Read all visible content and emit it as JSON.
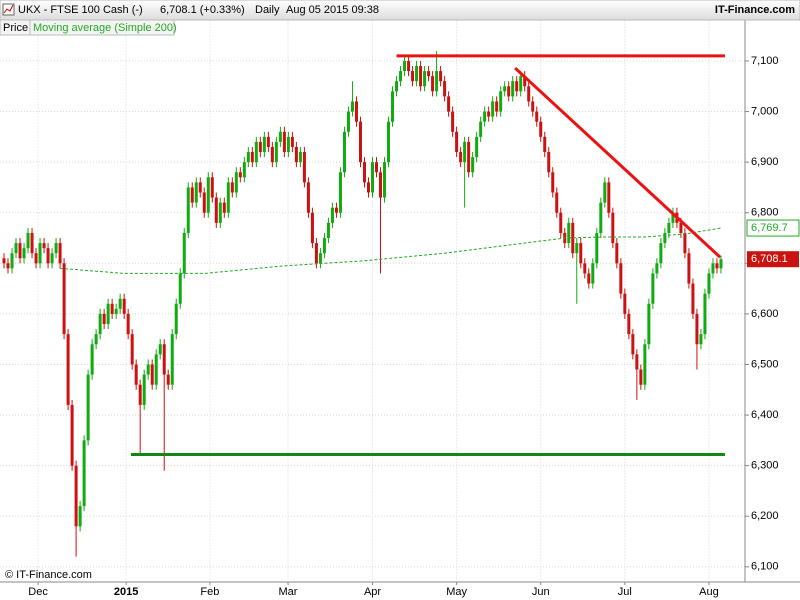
{
  "header": {
    "symbol": "UKX - FTSE 100 Cash (-)",
    "quote": "6,708.1 (+0.33%)",
    "period": "Daily",
    "datetime": "Aug 05 2015 09:38",
    "brand": "IT-Finance.com"
  },
  "footer": "© IT-Finance.com",
  "chart_data": {
    "type": "candlestick",
    "xlim": [
      -1,
      185
    ],
    "ylim": [
      6070,
      7180
    ],
    "xticks": [
      {
        "value": 8.5,
        "label": "Dec"
      },
      {
        "value": 30.5,
        "label": "2015"
      },
      {
        "value": 51.4,
        "label": "Feb"
      },
      {
        "value": 70.9,
        "label": "Mar"
      },
      {
        "value": 92,
        "label": "Apr"
      },
      {
        "value": 113,
        "label": "May"
      },
      {
        "value": 134,
        "label": "Jun"
      },
      {
        "value": 155,
        "label": "Jul"
      },
      {
        "value": 176,
        "label": "Aug"
      }
    ],
    "yticks": [
      {
        "value": 6100,
        "label": "6,100"
      },
      {
        "value": 6200,
        "label": "6,200"
      },
      {
        "value": 6300,
        "label": "6,300"
      },
      {
        "value": 6400,
        "label": "6,400"
      },
      {
        "value": 6500,
        "label": "6,500"
      },
      {
        "value": 6600,
        "label": "6,600"
      },
      {
        "value": 6700,
        "label": "6,700"
      },
      {
        "value": 6800,
        "label": "6,800"
      },
      {
        "value": 6900,
        "label": "6,900"
      },
      {
        "value": 7000,
        "label": "7,000"
      },
      {
        "value": 7100,
        "label": "7,100"
      }
    ],
    "grid": true,
    "series": [
      {
        "name": "Price",
        "up_color": "#11aa11",
        "down_color": "#cc1111",
        "open": [
          6710,
          6700,
          6690,
          6720,
          6740,
          6710,
          6730,
          6760,
          6720,
          6700,
          6740,
          6730,
          6700,
          6720,
          6740,
          6700,
          6560,
          6420,
          6300,
          6180,
          6220,
          6350,
          6480,
          6540,
          6560,
          6600,
          6580,
          6620,
          6600,
          6610,
          6630,
          6600,
          6560,
          6500,
          6460,
          6420,
          6480,
          6500,
          6460,
          6520,
          6540,
          6480,
          6460,
          6560,
          6620,
          6680,
          6760,
          6850,
          6820,
          6860,
          6840,
          6800,
          6870,
          6830,
          6780,
          6820,
          6800,
          6860,
          6840,
          6880,
          6870,
          6900,
          6920,
          6900,
          6940,
          6920,
          6950,
          6930,
          6900,
          6940,
          6960,
          6920,
          6950,
          6930,
          6900,
          6920,
          6860,
          6800,
          6740,
          6700,
          6720,
          6750,
          6780,
          6810,
          6800,
          6880,
          6960,
          7000,
          7020,
          6980,
          6900,
          6860,
          6840,
          6900,
          6880,
          6830,
          6900,
          6980,
          7040,
          7060,
          7080,
          7100,
          7080,
          7060,
          7090,
          7050,
          7080,
          7070,
          7040,
          7080,
          7060,
          7030,
          7000,
          6960,
          6920,
          6900,
          6940,
          6880,
          6910,
          6950,
          6980,
          7000,
          6990,
          7020,
          7000,
          7040,
          7050,
          7030,
          7060,
          7040,
          7070,
          7050,
          7020,
          7000,
          6980,
          6950,
          6920,
          6880,
          6840,
          6800,
          6760,
          6740,
          6780,
          6720,
          6740,
          6700,
          6680,
          6660,
          6700,
          6760,
          6820,
          6860,
          6800,
          6740,
          6700,
          6640,
          6600,
          6560,
          6520,
          6490,
          6460,
          6540,
          6620,
          6680,
          6700,
          6740,
          6760,
          6780,
          6800,
          6780,
          6760,
          6720,
          6660,
          6600,
          6540,
          6560,
          6640,
          6680,
          6700,
          6690
        ],
        "high": [
          6720,
          6710,
          6730,
          6750,
          6750,
          6740,
          6770,
          6770,
          6730,
          6750,
          6750,
          6740,
          6730,
          6750,
          6750,
          6710,
          6570,
          6430,
          6310,
          6230,
          6360,
          6490,
          6550,
          6570,
          6610,
          6610,
          6630,
          6630,
          6620,
          6640,
          6640,
          6610,
          6570,
          6510,
          6470,
          6490,
          6510,
          6510,
          6530,
          6550,
          6550,
          6490,
          6570,
          6630,
          6690,
          6770,
          6860,
          6860,
          6870,
          6870,
          6850,
          6880,
          6880,
          6840,
          6830,
          6830,
          6870,
          6870,
          6890,
          6890,
          6910,
          6930,
          6930,
          6950,
          6950,
          6960,
          6960,
          6940,
          6950,
          6970,
          6970,
          6960,
          6960,
          6940,
          6930,
          6930,
          6870,
          6810,
          6750,
          6730,
          6760,
          6790,
          6820,
          6820,
          6890,
          6970,
          7010,
          7060,
          7030,
          6990,
          6910,
          6870,
          6910,
          6910,
          6890,
          6910,
          6990,
          7050,
          7070,
          7090,
          7110,
          7110,
          7090,
          7100,
          7100,
          7090,
          7090,
          7080,
          7120,
          7090,
          7070,
          7040,
          7010,
          6970,
          6930,
          6950,
          6950,
          6920,
          6960,
          6990,
          7010,
          7010,
          7030,
          7030,
          7050,
          7060,
          7060,
          7070,
          7070,
          7080,
          7080,
          7060,
          7030,
          7010,
          6990,
          6960,
          6930,
          6890,
          6850,
          6810,
          6770,
          6790,
          6790,
          6750,
          6750,
          6710,
          6690,
          6710,
          6770,
          6830,
          6870,
          6870,
          6810,
          6750,
          6710,
          6650,
          6610,
          6570,
          6530,
          6500,
          6550,
          6630,
          6690,
          6710,
          6750,
          6770,
          6790,
          6810,
          6810,
          6790,
          6770,
          6730,
          6670,
          6610,
          6570,
          6650,
          6690,
          6710,
          6710,
          6715
        ],
        "low": [
          6690,
          6680,
          6680,
          6710,
          6700,
          6700,
          6720,
          6710,
          6690,
          6690,
          6720,
          6690,
          6690,
          6710,
          6690,
          6550,
          6410,
          6290,
          6120,
          6170,
          6210,
          6340,
          6470,
          6530,
          6550,
          6570,
          6570,
          6590,
          6590,
          6600,
          6590,
          6550,
          6490,
          6450,
          6320,
          6410,
          6470,
          6450,
          6450,
          6510,
          6290,
          6450,
          6450,
          6550,
          6610,
          6670,
          6750,
          6810,
          6810,
          6830,
          6790,
          6790,
          6820,
          6770,
          6770,
          6790,
          6790,
          6830,
          6830,
          6860,
          6860,
          6890,
          6890,
          6890,
          6910,
          6910,
          6920,
          6890,
          6890,
          6930,
          6910,
          6910,
          6920,
          6890,
          6890,
          6850,
          6790,
          6730,
          6690,
          6690,
          6710,
          6740,
          6770,
          6790,
          6790,
          6870,
          6950,
          6990,
          6970,
          6890,
          6850,
          6830,
          6830,
          6870,
          6680,
          6820,
          6890,
          6970,
          7030,
          7050,
          7070,
          7070,
          7050,
          7050,
          7040,
          7040,
          7060,
          7030,
          7030,
          7050,
          7020,
          6990,
          6950,
          6910,
          6890,
          6810,
          6870,
          6870,
          6900,
          6940,
          6970,
          6980,
          6980,
          6990,
          6990,
          7030,
          7020,
          7020,
          7030,
          7030,
          7040,
          7010,
          6990,
          6970,
          6940,
          6910,
          6870,
          6830,
          6790,
          6750,
          6730,
          6730,
          6710,
          6620,
          6690,
          6670,
          6650,
          6650,
          6690,
          6750,
          6810,
          6790,
          6730,
          6690,
          6630,
          6590,
          6550,
          6510,
          6430,
          6450,
          6450,
          6530,
          6610,
          6670,
          6690,
          6730,
          6750,
          6770,
          6770,
          6750,
          6710,
          6650,
          6590,
          6490,
          6530,
          6550,
          6630,
          6670,
          6680,
          6680
        ],
        "close": [
          6700,
          6690,
          6720,
          6740,
          6710,
          6730,
          6760,
          6720,
          6700,
          6740,
          6730,
          6700,
          6720,
          6740,
          6700,
          6560,
          6420,
          6300,
          6180,
          6220,
          6350,
          6480,
          6540,
          6560,
          6600,
          6580,
          6620,
          6600,
          6610,
          6630,
          6600,
          6560,
          6500,
          6460,
          6420,
          6480,
          6500,
          6460,
          6520,
          6540,
          6480,
          6460,
          6560,
          6620,
          6680,
          6760,
          6850,
          6820,
          6860,
          6840,
          6800,
          6870,
          6830,
          6780,
          6820,
          6800,
          6860,
          6840,
          6880,
          6870,
          6900,
          6920,
          6900,
          6940,
          6920,
          6950,
          6930,
          6900,
          6940,
          6960,
          6920,
          6950,
          6930,
          6900,
          6920,
          6860,
          6800,
          6740,
          6700,
          6720,
          6750,
          6780,
          6810,
          6800,
          6880,
          6960,
          7000,
          7020,
          6980,
          6900,
          6860,
          6840,
          6900,
          6880,
          6830,
          6900,
          6980,
          7040,
          7060,
          7080,
          7100,
          7080,
          7060,
          7090,
          7050,
          7080,
          7070,
          7040,
          7080,
          7060,
          7030,
          7000,
          6960,
          6920,
          6900,
          6940,
          6880,
          6910,
          6950,
          6980,
          7000,
          6990,
          7020,
          7000,
          7040,
          7050,
          7030,
          7060,
          7040,
          7070,
          7050,
          7020,
          7000,
          6980,
          6950,
          6920,
          6880,
          6840,
          6800,
          6760,
          6740,
          6780,
          6720,
          6740,
          6700,
          6680,
          6660,
          6700,
          6760,
          6820,
          6860,
          6800,
          6740,
          6700,
          6640,
          6600,
          6560,
          6520,
          6490,
          6460,
          6540,
          6620,
          6680,
          6700,
          6740,
          6760,
          6780,
          6800,
          6780,
          6760,
          6720,
          6660,
          6600,
          6540,
          6560,
          6640,
          6680,
          6700,
          6690,
          6708.1
        ],
        "last": {
          "value": 6708.1,
          "label": "6,708.1"
        }
      },
      {
        "name": "Moving average (Simple 200)",
        "color": "#22aa22",
        "x": [
          14,
          30,
          50,
          70,
          90,
          110,
          130,
          140,
          150,
          160,
          170,
          179
        ],
        "values": [
          6690,
          6680,
          6680,
          6695,
          6705,
          6720,
          6740,
          6750,
          6752,
          6752,
          6758,
          6769.7
        ],
        "last": {
          "value": 6769.7,
          "label": "6,769.7"
        }
      }
    ],
    "trendlines": [
      {
        "x": [
          98,
          180
        ],
        "y": [
          7110,
          7110
        ],
        "color": "#ee1111"
      },
      {
        "x": [
          127.6,
          178.8
        ],
        "y": [
          7086,
          6712
        ],
        "color": "#ee1111"
      },
      {
        "x": [
          31.7,
          180
        ],
        "y": [
          6322,
          6322
        ],
        "color": "#118811"
      }
    ]
  }
}
